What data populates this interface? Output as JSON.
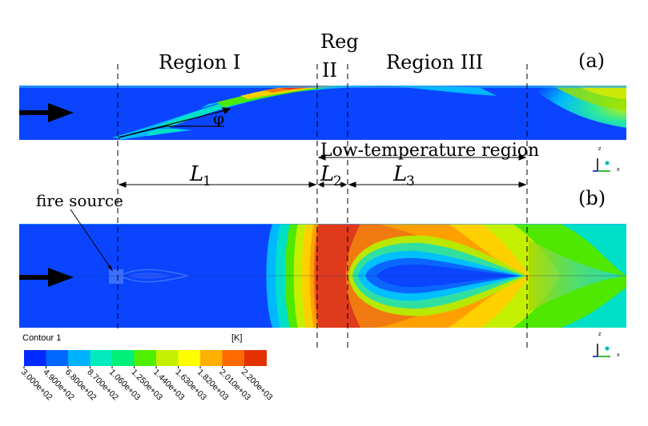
{
  "labels": {
    "region1": "Region I",
    "region2_a": "Reg",
    "region2_b": "II",
    "region3": "Region III",
    "panel_a": "(a)",
    "panel_b": "(b)",
    "low_temp": "Low-temperature region",
    "angle": "φ",
    "L1": "L",
    "L1_sub": "1",
    "L2": "L",
    "L2_sub": "2",
    "L3": "L",
    "L3_sub": "3",
    "fire_source": "fire source"
  },
  "legend": {
    "title": "Contour 1",
    "unit": "[K]",
    "colors": [
      "#0029ff",
      "#0066ff",
      "#00b3ff",
      "#00eabd",
      "#00f07a",
      "#4ef000",
      "#c4f000",
      "#ffff00",
      "#ffb000",
      "#ff6a00",
      "#e23000"
    ],
    "ticks": [
      "3.000e+02",
      "4.900e+02",
      "6.800e+02",
      "8.700e+02",
      "1.060e+03",
      "1.250e+03",
      "1.440e+03",
      "1.630e+03",
      "1.820e+03",
      "2.010e+03",
      "2.200e+03"
    ]
  },
  "colors": {
    "cold": "#0a44ff",
    "hot": "#e03a1c"
  }
}
